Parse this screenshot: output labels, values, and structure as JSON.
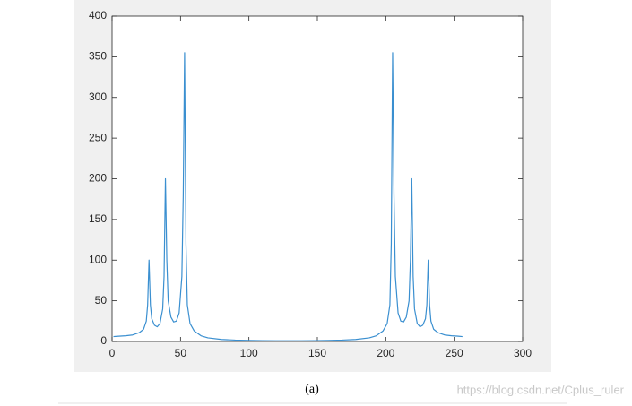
{
  "chart_data": {
    "type": "line",
    "x": [
      1,
      5,
      10,
      15,
      20,
      23,
      25,
      26,
      27,
      28,
      29,
      31,
      33,
      35,
      37,
      38,
      39,
      40,
      41,
      43,
      45,
      47,
      49,
      51,
      52,
      53,
      54,
      55,
      57,
      60,
      65,
      70,
      80,
      90,
      100,
      110,
      120,
      128,
      130,
      138,
      148,
      158,
      168,
      178,
      188,
      193,
      198,
      201,
      203,
      204,
      205,
      206,
      207,
      209,
      211,
      213,
      215,
      217,
      218,
      219,
      220,
      221,
      223,
      225,
      227,
      229,
      230,
      231,
      232,
      233,
      235,
      238,
      243,
      248,
      253,
      256
    ],
    "values": [
      6,
      6.5,
      7,
      8,
      11,
      15,
      25,
      45,
      100,
      45,
      28,
      20,
      18,
      22,
      40,
      80,
      200,
      100,
      50,
      30,
      24,
      25,
      35,
      80,
      180,
      355,
      120,
      45,
      22,
      13,
      7,
      4.5,
      2.5,
      1.7,
      1.3,
      1,
      0.9,
      0.8,
      0.8,
      0.9,
      1,
      1.3,
      1.7,
      2.5,
      4.5,
      7,
      13,
      22,
      45,
      120,
      355,
      180,
      80,
      35,
      25,
      24,
      30,
      50,
      100,
      200,
      80,
      40,
      22,
      18,
      20,
      28,
      45,
      100,
      45,
      25,
      15,
      11,
      8,
      7,
      6.5,
      6
    ],
    "color": "#3a8fd0",
    "xlim": [
      0,
      300
    ],
    "xticks": [
      0,
      50,
      100,
      150,
      200,
      250,
      300
    ],
    "ylim": [
      0,
      400
    ],
    "yticks": [
      0,
      50,
      100,
      150,
      200,
      250,
      300,
      350,
      400
    ],
    "grid": false
  },
  "caption": "(a)",
  "watermark": "https://blog.csdn.net/Cplus_ruler"
}
